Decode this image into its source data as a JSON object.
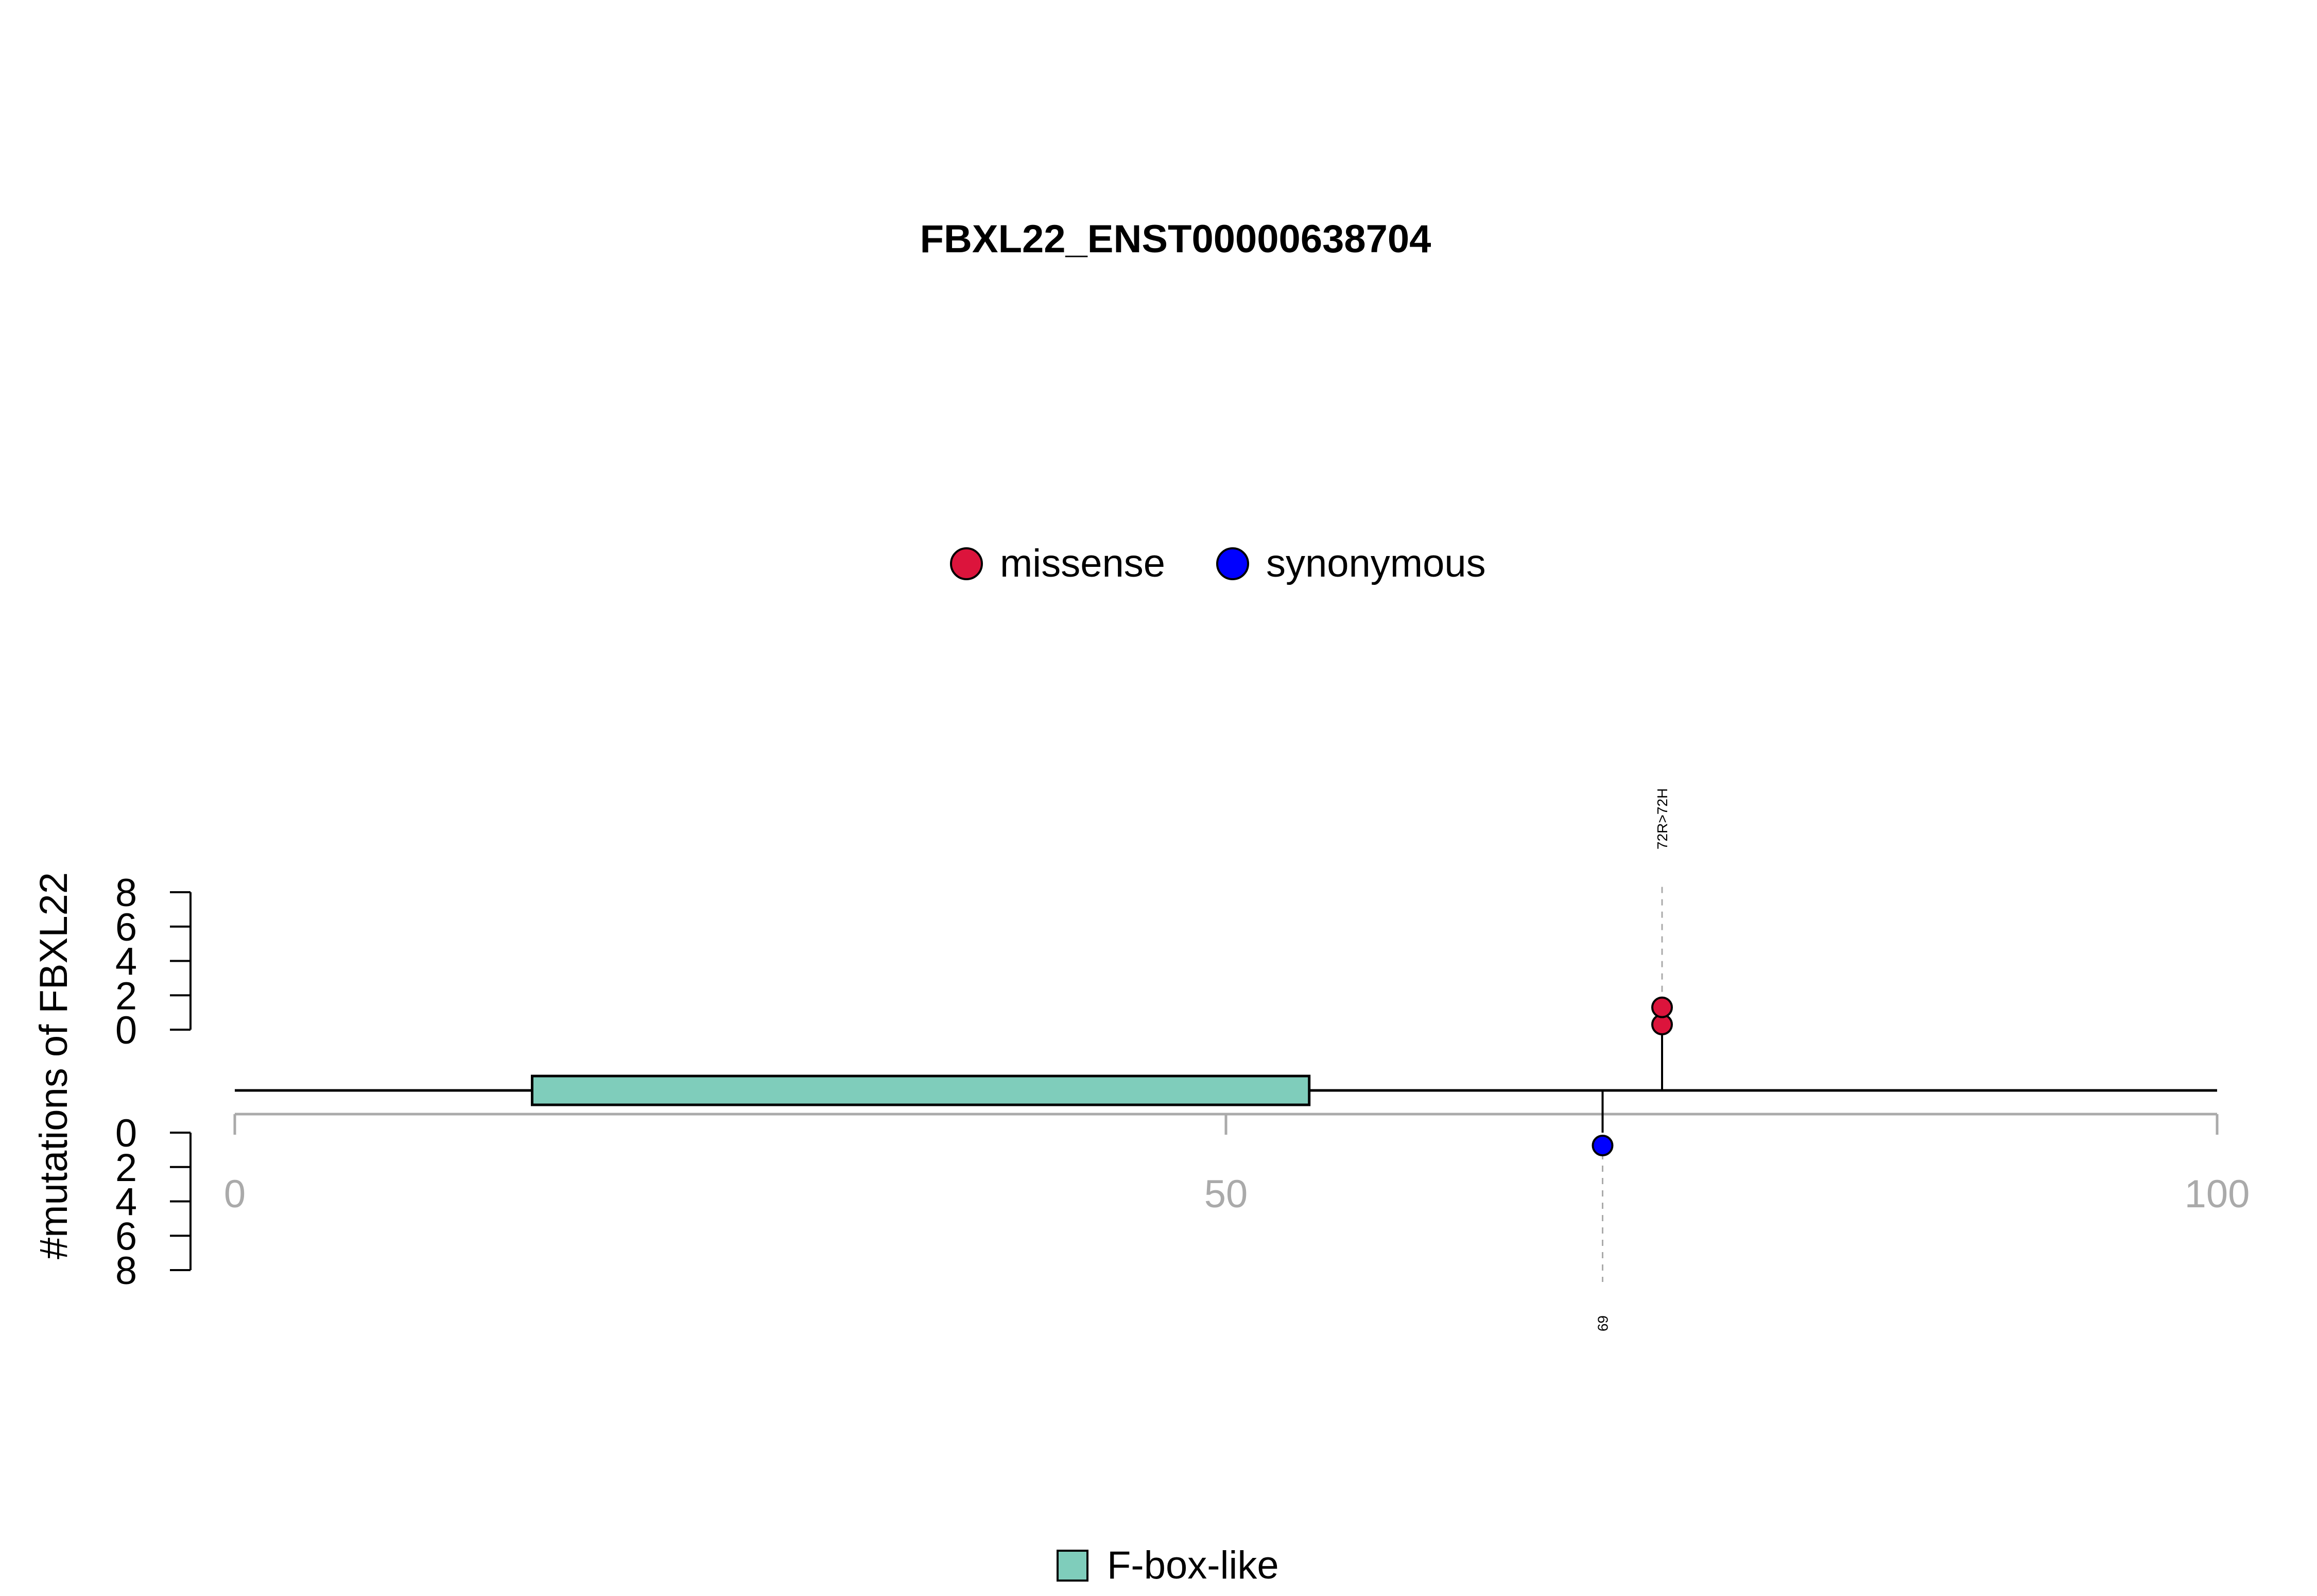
{
  "chart_data": {
    "type": "lollipop",
    "title": "FBXL22_ENST00000638704",
    "ylabel": "#mutations of FBXL22",
    "xlim": [
      0,
      100
    ],
    "x_ticks": [
      0,
      50,
      100
    ],
    "y_ticks_upper": [
      0,
      2,
      4,
      6,
      8
    ],
    "y_ticks_lower": [
      0,
      2,
      4,
      6,
      8
    ],
    "ylim": [
      0,
      8
    ],
    "legend": [
      {
        "name": "missense",
        "color": "#DC143C"
      },
      {
        "name": "synonymous",
        "color": "#0000FF"
      }
    ],
    "domains": [
      {
        "name": "F-box-like",
        "start": 15,
        "end": 54.2,
        "color": "#7FCDBB"
      }
    ],
    "mutations": [
      {
        "position": 72,
        "count": 2,
        "type": "missense",
        "label": "72R>72H",
        "side": "upper"
      },
      {
        "position": 69,
        "count": 1,
        "type": "synonymous",
        "label": "69",
        "side": "lower"
      }
    ],
    "grid": false,
    "legend_position": "top-center"
  }
}
